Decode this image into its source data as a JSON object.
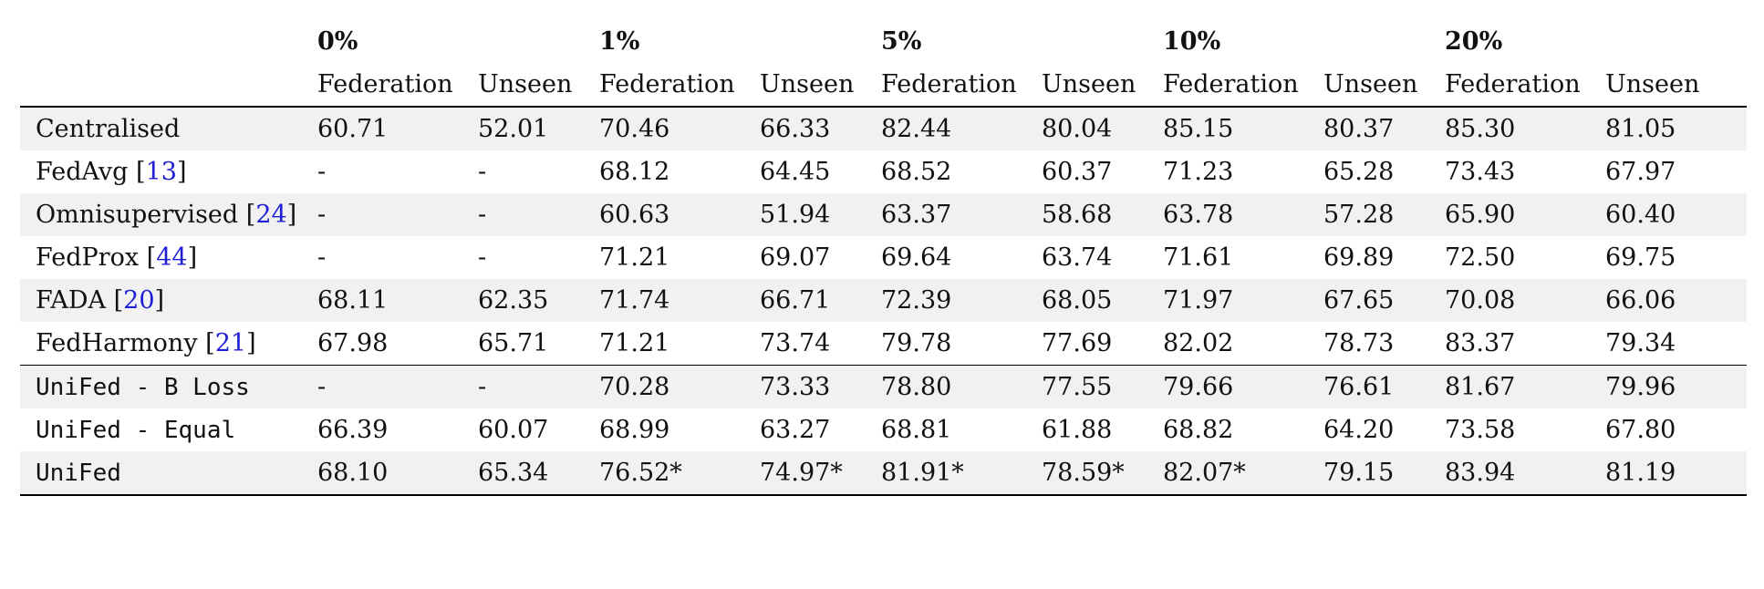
{
  "columns": {
    "groups": [
      "0%",
      "1%",
      "5%",
      "10%",
      "20%"
    ],
    "sub": [
      "Federation",
      "Unseen",
      "Federation",
      "Unseen",
      "Federation",
      "Unseen",
      "Federation",
      "Unseen",
      "Federation",
      "Unseen"
    ]
  },
  "rows": [
    {
      "method": "Centralised",
      "ref": "",
      "mono": false,
      "values": [
        "60.71",
        "52.01",
        "70.46",
        "66.33",
        "82.44",
        "80.04",
        "85.15",
        "80.37",
        "85.30",
        "81.05"
      ],
      "bold": [
        false,
        false,
        false,
        false,
        false,
        false,
        false,
        false,
        false,
        false
      ]
    },
    {
      "method": "FedAvg",
      "ref": "13",
      "mono": false,
      "values": [
        "-",
        "-",
        "68.12",
        "64.45",
        "68.52",
        "60.37",
        "71.23",
        "65.28",
        "73.43",
        "67.97"
      ],
      "bold": [
        false,
        false,
        false,
        false,
        false,
        false,
        false,
        false,
        false,
        false
      ]
    },
    {
      "method": "Omnisupervised",
      "ref": "24",
      "mono": false,
      "values": [
        "-",
        "-",
        "60.63",
        "51.94",
        "63.37",
        "58.68",
        "63.78",
        "57.28",
        "65.90",
        "60.40"
      ],
      "bold": [
        false,
        false,
        false,
        false,
        false,
        false,
        false,
        false,
        false,
        false
      ]
    },
    {
      "method": "FedProx",
      "ref": "44",
      "mono": false,
      "values": [
        "-",
        "-",
        "71.21",
        "69.07",
        "69.64",
        "63.74",
        "71.61",
        "69.89",
        "72.50",
        "69.75"
      ],
      "bold": [
        false,
        false,
        false,
        false,
        false,
        false,
        false,
        false,
        false,
        false
      ]
    },
    {
      "method": "FADA",
      "ref": "20",
      "mono": false,
      "values": [
        "68.11",
        "62.35",
        "71.74",
        "66.71",
        "72.39",
        "68.05",
        "71.97",
        "67.65",
        "70.08",
        "66.06"
      ],
      "bold": [
        true,
        false,
        false,
        false,
        false,
        false,
        false,
        false,
        false,
        false
      ]
    },
    {
      "method": "FedHarmony",
      "ref": "21",
      "mono": false,
      "values": [
        "67.98",
        "65.71",
        "71.21",
        "73.74",
        "79.78",
        "77.69",
        "82.02",
        "78.73",
        "83.37",
        "79.34"
      ],
      "bold": [
        false,
        true,
        false,
        false,
        false,
        false,
        false,
        false,
        false,
        false
      ]
    },
    {
      "method": "UniFed - B Loss",
      "ref": "",
      "mono": true,
      "values": [
        "-",
        "-",
        "70.28",
        "73.33",
        "78.80",
        "77.55",
        "79.66",
        "76.61",
        "81.67",
        "79.96"
      ],
      "bold": [
        false,
        false,
        false,
        false,
        false,
        false,
        false,
        false,
        false,
        false
      ]
    },
    {
      "method": "UniFed - Equal",
      "ref": "",
      "mono": true,
      "values": [
        "66.39",
        "60.07",
        "68.99",
        "63.27",
        "68.81",
        "61.88",
        "68.82",
        "64.20",
        "73.58",
        "67.80"
      ],
      "bold": [
        false,
        false,
        false,
        false,
        false,
        false,
        false,
        false,
        false,
        false
      ]
    },
    {
      "method": "UniFed",
      "ref": "",
      "mono": true,
      "values": [
        "68.10",
        "65.34",
        "76.52*",
        "74.97*",
        "81.91*",
        "78.59*",
        "82.07*",
        "79.15",
        "83.94",
        "81.19"
      ],
      "bold": [
        false,
        false,
        true,
        true,
        true,
        true,
        true,
        true,
        true,
        true
      ]
    }
  ]
}
